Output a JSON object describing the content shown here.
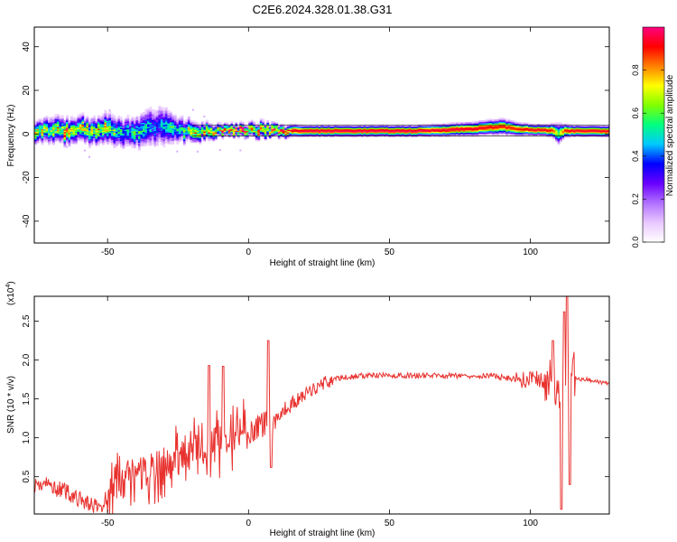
{
  "figure_title": "C2E6.2024.328.01.38.G31",
  "chart_data": [
    {
      "type": "heatmap",
      "title": "C2E6.2024.328.01.38.G31",
      "xlabel": "Height of straight line (km)",
      "ylabel": "Frequency (Hz)",
      "xlim": [
        -76,
        128
      ],
      "ylim": [
        -50,
        49
      ],
      "xticks": [
        -50,
        0,
        50,
        100
      ],
      "yticks": [
        -40,
        -20,
        0,
        20,
        40
      ],
      "xtick_labels": [
        "-50",
        "0",
        "50",
        "100"
      ],
      "ytick_labels": [
        "-40",
        "-20",
        "0",
        "20",
        "40"
      ],
      "colorbar": {
        "label": "Normalized spectral amplitude",
        "range": [
          0.0,
          1.0
        ],
        "ticks": [
          0.0,
          0.2,
          0.4,
          0.6,
          0.8
        ],
        "tick_labels": [
          "0.0",
          "0.2",
          "0.4",
          "0.6",
          "0.8"
        ],
        "colors": [
          "#ffffff",
          "#e9c8ff",
          "#b070ff",
          "#6a00ff",
          "#0000ff",
          "#00c8ff",
          "#00ff80",
          "#80ff00",
          "#ffff00",
          "#ff8000",
          "#ff0000",
          "#ff0080"
        ]
      },
      "ridge": {
        "x": [
          -76,
          -70,
          -65,
          -60,
          -55,
          -50,
          -45,
          -40,
          -35,
          -30,
          -25,
          -20,
          -15,
          -10,
          -5,
          0,
          5,
          10,
          20,
          40,
          60,
          80,
          90,
          95,
          100,
          105,
          108,
          110,
          112,
          115,
          120,
          128
        ],
        "freq_center": [
          1.5,
          2,
          1,
          2.5,
          1,
          2.5,
          0.5,
          1,
          3,
          4,
          2,
          1.5,
          1,
          1.5,
          1.5,
          1.5,
          2,
          1.8,
          1.5,
          1.5,
          1.5,
          2.5,
          3.5,
          2.5,
          2,
          1.8,
          1.8,
          0,
          1.5,
          1.5,
          1.5,
          1.5
        ],
        "bandwidth": [
          5,
          6,
          6,
          6,
          6,
          7,
          7,
          7,
          9,
          9,
          6,
          5,
          4,
          3,
          3,
          3,
          4,
          3,
          2.5,
          2.5,
          2.5,
          3,
          3.5,
          3,
          2.5,
          2.5,
          3,
          5,
          3,
          2.5,
          2.5,
          2.5
        ],
        "peak_amplitude": [
          0.7,
          0.8,
          0.85,
          0.75,
          0.8,
          0.7,
          0.6,
          0.55,
          0.5,
          0.5,
          0.55,
          0.7,
          0.8,
          0.95,
          0.95,
          0.97,
          0.85,
          0.95,
          0.97,
          0.98,
          0.98,
          0.95,
          0.9,
          0.9,
          0.95,
          0.95,
          0.9,
          0.6,
          0.9,
          0.95,
          0.95,
          0.95
        ]
      }
    },
    {
      "type": "line",
      "xlabel": "Height of straight line (km)",
      "ylabel": "SNR (10 * v/v)",
      "y_multiplier_label": "(x10",
      "y_multiplier_exp": "4",
      "y_multiplier_close": ")",
      "xlim": [
        -76,
        128
      ],
      "ylim": [
        0.02,
        2.82
      ],
      "xticks": [
        -50,
        0,
        50,
        100
      ],
      "yticks": [
        0.5,
        1.0,
        1.5,
        2.0,
        2.5
      ],
      "xtick_labels": [
        "-50",
        "0",
        "50",
        "100"
      ],
      "ytick_labels": [
        "0.5",
        "1.0",
        "1.5",
        "2.0",
        "2.5"
      ],
      "series": [
        {
          "name": "SNR",
          "color": "#e8322f",
          "x": [
            -76,
            -72,
            -68,
            -64,
            -60,
            -56,
            -54,
            -52,
            -50,
            -48,
            -46,
            -44,
            -42,
            -40,
            -38,
            -36,
            -34,
            -32,
            -30,
            -28,
            -26,
            -24,
            -22,
            -20,
            -18,
            -16,
            -14,
            -12,
            -10,
            -8,
            -6,
            -4,
            -2,
            0,
            2,
            4,
            6,
            8,
            10,
            12,
            14,
            16,
            18,
            20,
            22,
            24,
            26,
            28,
            30,
            35,
            40,
            45,
            50,
            55,
            60,
            65,
            70,
            75,
            80,
            85,
            90,
            95,
            100,
            103,
            106,
            108,
            110,
            111,
            112,
            113,
            114,
            116,
            118,
            120,
            124,
            128
          ],
          "y": [
            0.4,
            0.4,
            0.35,
            0.3,
            0.2,
            0.15,
            0.1,
            0.12,
            0.25,
            0.35,
            0.4,
            0.45,
            0.5,
            0.55,
            0.55,
            0.6,
            0.6,
            0.65,
            0.65,
            0.7,
            0.7,
            0.75,
            0.75,
            0.8,
            0.85,
            0.85,
            0.9,
            0.95,
            0.95,
            1.0,
            1.0,
            1.05,
            1.05,
            1.1,
            1.1,
            1.15,
            1.2,
            1.15,
            1.25,
            1.35,
            1.4,
            1.45,
            1.5,
            1.55,
            1.6,
            1.65,
            1.7,
            1.72,
            1.75,
            1.78,
            1.8,
            1.8,
            1.8,
            1.8,
            1.8,
            1.8,
            1.8,
            1.8,
            1.8,
            1.8,
            1.78,
            1.75,
            1.75,
            1.75,
            1.72,
            1.7,
            1.5,
            1.2,
            2.4,
            1.5,
            1.9,
            1.78,
            1.75,
            1.75,
            1.72,
            1.7
          ],
          "spikes": [
            {
              "x": -14,
              "y": 1.93
            },
            {
              "x": -9,
              "y": 1.92
            },
            {
              "x": 7,
              "y": 2.25
            },
            {
              "x": 8,
              "y": 0.62
            },
            {
              "x": 108,
              "y": 2.25
            },
            {
              "x": 111,
              "y": 0.08
            },
            {
              "x": 112,
              "y": 2.62
            },
            {
              "x": 113,
              "y": 2.85
            },
            {
              "x": 114,
              "y": 0.4
            }
          ]
        }
      ]
    }
  ]
}
